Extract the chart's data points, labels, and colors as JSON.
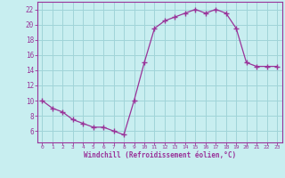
{
  "x": [
    0,
    1,
    2,
    3,
    4,
    5,
    6,
    7,
    8,
    9,
    10,
    11,
    12,
    13,
    14,
    15,
    16,
    17,
    18,
    19,
    20,
    21,
    22,
    23
  ],
  "y": [
    10,
    9,
    8.5,
    7.5,
    7,
    6.5,
    6.5,
    6,
    5.5,
    10,
    15,
    19.5,
    20.5,
    21,
    21.5,
    22,
    21.5,
    22,
    21.5,
    19.5,
    15,
    14.5,
    14.5,
    14.5
  ],
  "line_color": "#993399",
  "marker_color": "#993399",
  "bg_color": "#c8eef0",
  "grid_color": "#a0d4d8",
  "axis_color": "#993399",
  "tick_color": "#993399",
  "xlabel": "Windchill (Refroidissement éolien,°C)",
  "xlabel_color": "#993399",
  "ylim": [
    4.5,
    23
  ],
  "xlim": [
    -0.5,
    23.5
  ],
  "yticks": [
    6,
    8,
    10,
    12,
    14,
    16,
    18,
    20,
    22
  ],
  "xticks": [
    0,
    1,
    2,
    3,
    4,
    5,
    6,
    7,
    8,
    9,
    10,
    11,
    12,
    13,
    14,
    15,
    16,
    17,
    18,
    19,
    20,
    21,
    22,
    23
  ],
  "xtick_labels": [
    "0",
    "1",
    "2",
    "3",
    "4",
    "5",
    "6",
    "7",
    "8",
    "9",
    "10",
    "11",
    "12",
    "13",
    "14",
    "15",
    "16",
    "17",
    "18",
    "19",
    "20",
    "21",
    "22",
    "23"
  ]
}
